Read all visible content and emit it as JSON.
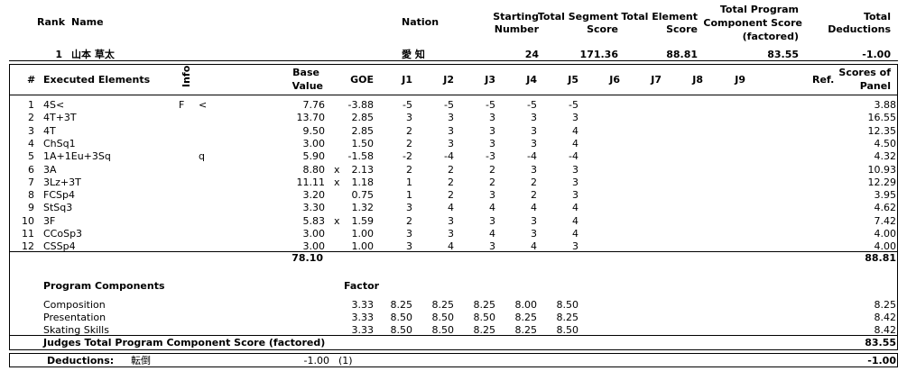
{
  "header": {
    "rank_label": "Rank",
    "name_label": "Name",
    "nation_label": "Nation",
    "starting_number_label": [
      "Starting",
      "Number"
    ],
    "tss_label": [
      "Total Segment",
      "Score"
    ],
    "tes_label": [
      "Total Element",
      "Score"
    ],
    "pcs_label": [
      "Total Program",
      "Component Score",
      "(factored)"
    ],
    "ded_label": [
      "Total",
      "Deductions"
    ]
  },
  "skater": {
    "rank": "1",
    "name": "山本 草太",
    "nation": "愛 知",
    "starting_number": "24",
    "total_segment_score": "171.36",
    "total_element_score": "88.81",
    "total_pcs": "83.55",
    "total_deductions": "-1.00"
  },
  "elements_header": {
    "num": "#",
    "executed": "Executed Elements",
    "info": "Info",
    "base_value": [
      "Base",
      "Value"
    ],
    "goe": "GOE",
    "judges": [
      "J1",
      "J2",
      "J3",
      "J4",
      "J5",
      "J6",
      "J7",
      "J8",
      "J9"
    ],
    "ref": "Ref.",
    "scores": [
      "Scores of",
      "Panel"
    ]
  },
  "elements": [
    {
      "num": "1",
      "name": "4S<",
      "info1": "F",
      "info2": "<",
      "bv": "7.76",
      "x": "",
      "goe": "-3.88",
      "j": [
        "-5",
        "-5",
        "-5",
        "-5",
        "-5"
      ],
      "score": "3.88"
    },
    {
      "num": "2",
      "name": "4T+3T",
      "info1": "",
      "info2": "",
      "bv": "13.70",
      "x": "",
      "goe": "2.85",
      "j": [
        "3",
        "3",
        "3",
        "3",
        "3"
      ],
      "score": "16.55"
    },
    {
      "num": "3",
      "name": "4T",
      "info1": "",
      "info2": "",
      "bv": "9.50",
      "x": "",
      "goe": "2.85",
      "j": [
        "2",
        "3",
        "3",
        "3",
        "4"
      ],
      "score": "12.35"
    },
    {
      "num": "4",
      "name": "ChSq1",
      "info1": "",
      "info2": "",
      "bv": "3.00",
      "x": "",
      "goe": "1.50",
      "j": [
        "2",
        "3",
        "3",
        "3",
        "4"
      ],
      "score": "4.50"
    },
    {
      "num": "5",
      "name": "1A+1Eu+3Sq",
      "info1": "",
      "info2": "q",
      "bv": "5.90",
      "x": "",
      "goe": "-1.58",
      "j": [
        "-2",
        "-4",
        "-3",
        "-4",
        "-4"
      ],
      "score": "4.32"
    },
    {
      "num": "6",
      "name": "3A",
      "info1": "",
      "info2": "",
      "bv": "8.80",
      "x": "x",
      "goe": "2.13",
      "j": [
        "2",
        "2",
        "2",
        "3",
        "3"
      ],
      "score": "10.93"
    },
    {
      "num": "7",
      "name": "3Lz+3T",
      "info1": "",
      "info2": "",
      "bv": "11.11",
      "x": "x",
      "goe": "1.18",
      "j": [
        "1",
        "2",
        "2",
        "2",
        "3"
      ],
      "score": "12.29"
    },
    {
      "num": "8",
      "name": "FCSp4",
      "info1": "",
      "info2": "",
      "bv": "3.20",
      "x": "",
      "goe": "0.75",
      "j": [
        "1",
        "2",
        "3",
        "2",
        "3"
      ],
      "score": "3.95"
    },
    {
      "num": "9",
      "name": "StSq3",
      "info1": "",
      "info2": "",
      "bv": "3.30",
      "x": "",
      "goe": "1.32",
      "j": [
        "3",
        "4",
        "4",
        "4",
        "4"
      ],
      "score": "4.62"
    },
    {
      "num": "10",
      "name": "3F",
      "info1": "",
      "info2": "",
      "bv": "5.83",
      "x": "x",
      "goe": "1.59",
      "j": [
        "2",
        "3",
        "3",
        "3",
        "4"
      ],
      "score": "7.42"
    },
    {
      "num": "11",
      "name": "CCoSp3",
      "info1": "",
      "info2": "",
      "bv": "3.00",
      "x": "",
      "goe": "1.00",
      "j": [
        "3",
        "3",
        "4",
        "3",
        "4"
      ],
      "score": "4.00"
    },
    {
      "num": "12",
      "name": "CSSp4",
      "info1": "",
      "info2": "",
      "bv": "3.00",
      "x": "",
      "goe": "1.00",
      "j": [
        "3",
        "4",
        "3",
        "4",
        "3"
      ],
      "score": "4.00"
    }
  ],
  "elements_total": {
    "bv": "78.10",
    "score": "88.81"
  },
  "components_header": {
    "title": "Program Components",
    "factor": "Factor"
  },
  "components": [
    {
      "name": "Composition",
      "factor": "3.33",
      "j": [
        "8.25",
        "8.25",
        "8.25",
        "8.00",
        "8.50"
      ],
      "score": "8.25"
    },
    {
      "name": "Presentation",
      "factor": "3.33",
      "j": [
        "8.50",
        "8.50",
        "8.50",
        "8.25",
        "8.25"
      ],
      "score": "8.42"
    },
    {
      "name": "Skating Skills",
      "factor": "3.33",
      "j": [
        "8.50",
        "8.50",
        "8.25",
        "8.25",
        "8.50"
      ],
      "score": "8.42"
    }
  ],
  "pcs_total": {
    "label": "Judges Total Program Component Score (factored)",
    "value": "83.55"
  },
  "deductions": {
    "label": "Deductions:",
    "type": "転倒",
    "value": "-1.00",
    "count": "(1)",
    "total": "-1.00"
  }
}
